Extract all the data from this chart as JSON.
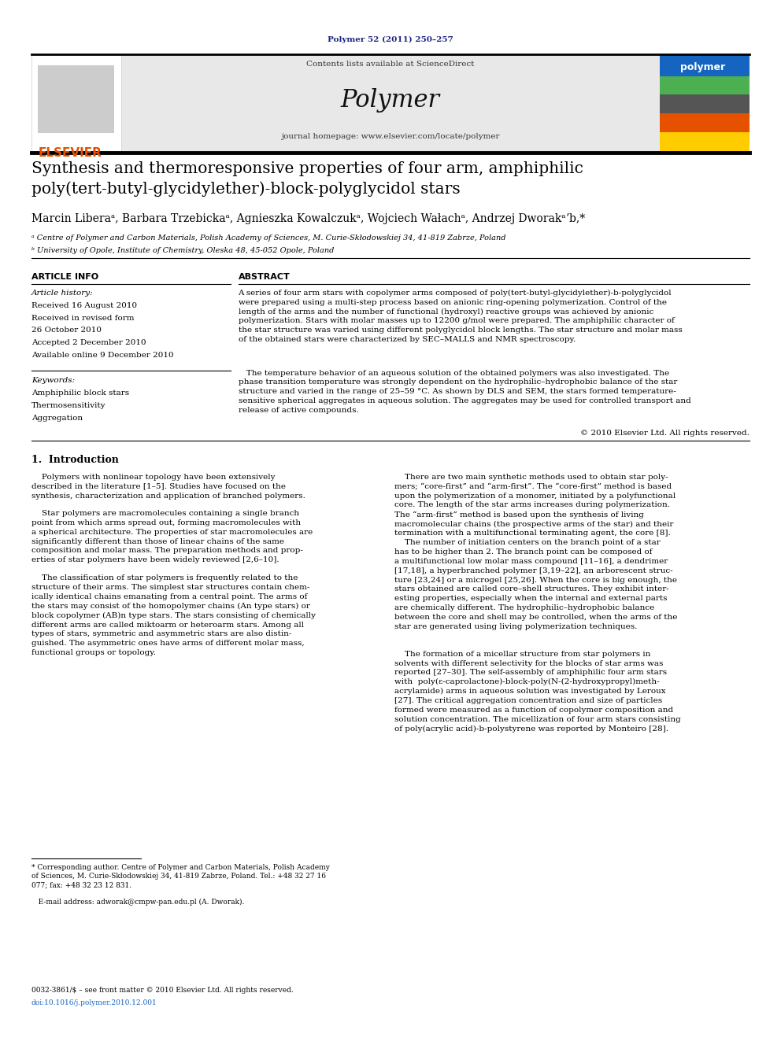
{
  "page_width": 9.92,
  "page_height": 13.23,
  "bg_color": "#ffffff",
  "header_citation": "Polymer 52 (2011) 250–257",
  "header_citation_color": "#1a237e",
  "elsevier_logo_color": "#e65100",
  "elsevier_text": "ELSEVIER",
  "journal_header_bg": "#e8e8e8",
  "journal_name": "Polymer",
  "contents_text": "Contents lists available at ScienceDirect",
  "sciencedirect_color": "#1565c0",
  "journal_homepage": "journal homepage: www.elsevier.com/locate/polymer",
  "top_rule_color": "#000000",
  "bottom_rule_color": "#000000",
  "article_title": "Synthesis and thermoresponsive properties of four arm, amphiphilic\npoly(tert-butyl-glycidylether)-block-polyglycidol stars",
  "affiliation_a": "ᵃ Centre of Polymer and Carbon Materials, Polish Academy of Sciences, M. Curie-Skłodowskiej 34, 41-819 Zabrze, Poland",
  "affiliation_b": "ᵇ University of Opole, Institute of Chemistry, Oleska 48, 45-052 Opole, Poland",
  "article_info_title": "ARTICLE INFO",
  "article_history_title": "Article history:",
  "received1": "Received 16 August 2010",
  "received2": "Received in revised form",
  "received2b": "26 October 2010",
  "accepted": "Accepted 2 December 2010",
  "available": "Available online 9 December 2010",
  "keywords_title": "Keywords:",
  "keyword1": "Amphiphilic block stars",
  "keyword2": "Thermosensitivity",
  "keyword3": "Aggregation",
  "abstract_title": "ABSTRACT",
  "abstract_p1": "A series of four arm stars with copolymer arms composed of poly(tert-butyl-glycidylether)-b-polyglycidol\nwere prepared using a multi-step process based on anionic ring-opening polymerization. Control of the\nlength of the arms and the number of functional (hydroxyl) reactive groups was achieved by anionic\npolymerization. Stars with molar masses up to 12200 g/mol were prepared. The amphiphilic character of\nthe star structure was varied using different polyglycidol block lengths. The star structure and molar mass\nof the obtained stars were characterized by SEC–MALLS and NMR spectroscopy.",
  "abstract_p2": "   The temperature behavior of an aqueous solution of the obtained polymers was also investigated. The\nphase transition temperature was strongly dependent on the hydrophilic–hydrophobic balance of the star\nstructure and varied in the range of 25–59 °C. As shown by DLS and SEM, the stars formed temperature-\nsensitive spherical aggregates in aqueous solution. The aggregates may be used for controlled transport and\nrelease of active compounds.",
  "copyright": "© 2010 Elsevier Ltd. All rights reserved.",
  "section1_title": "1.  Introduction",
  "intro_left_p1": "    Polymers with nonlinear topology have been extensively\ndescribed in the literature [1–5]. Studies have focused on the\nsynthesis, characterization and application of branched polymers.",
  "intro_left_p2": "    Star polymers are macromolecules containing a single branch\npoint from which arms spread out, forming macromolecules with\na spherical architecture. The properties of star macromolecules are\nsignificantly different than those of linear chains of the same\ncomposition and molar mass. The preparation methods and prop-\nerties of star polymers have been widely reviewed [2,6–10].",
  "intro_left_p3": "    The classification of star polymers is frequently related to the\nstructure of their arms. The simplest star structures contain chem-\nically identical chains emanating from a central point. The arms of\nthe stars may consist of the homopolymer chains (An type stars) or\nblock copolymer (AB)n type stars. The stars consisting of chemically\ndifferent arms are called miktoarm or heteroarm stars. Among all\ntypes of stars, symmetric and asymmetric stars are also distin-\nguished. The asymmetric ones have arms of different molar mass,\nfunctional groups or topology.",
  "intro_right_p1": "    There are two main synthetic methods used to obtain star poly-\nmers; “core-first” and “arm-first”. The “core-first” method is based\nupon the polymerization of a monomer, initiated by a polyfunctional\ncore. The length of the star arms increases during polymerization.\nThe “arm-first” method is based upon the synthesis of living\nmacromolecular chains (the prospective arms of the star) and their\ntermination with a multifunctional terminating agent, the core [8].",
  "intro_right_p2": "    The number of initiation centers on the branch point of a star\nhas to be higher than 2. The branch point can be composed of\na multifunctional low molar mass compound [11–16], a dendrimer\n[17,18], a hyperbranched polymer [3,19–22], an arborescent struc-\nture [23,24] or a microgel [25,26]. When the core is big enough, the\nstars obtained are called core–shell structures. They exhibit inter-\nesting properties, especially when the internal and external parts\nare chemically different. The hydrophilic–hydrophobic balance\nbetween the core and shell may be controlled, when the arms of the\nstar are generated using living polymerization techniques.",
  "intro_right_p3": "    The formation of a micellar structure from star polymers in\nsolvents with different selectivity for the blocks of star arms was\nreported [27–30]. The self-assembly of amphiphilic four arm stars\nwith  poly(ε-caprolactone)-block-poly(N-(2-hydroxypropyl)meth-\nacrylamide) arms in aqueous solution was investigated by Leroux\n[27]. The critical aggregation concentration and size of particles\nformed were measured as a function of copolymer composition and\nsolution concentration. The micellization of four arm stars consisting\nof poly(acrylic acid)-b-polystyrene was reported by Monteiro [28].",
  "footnote_star": "* Corresponding author. Centre of Polymer and Carbon Materials, Polish Academy\nof Sciences, M. Curie-Skłodowskiej 34, 41-819 Zabrze, Poland. Tel.: +48 32 27 16\n077; fax: +48 32 23 12 831.",
  "footnote_email": "   E-mail address: adworak@cmpw-pan.edu.pl (A. Dworak).",
  "footer_line1": "0032-3861/$ – see front matter © 2010 Elsevier Ltd. All rights reserved.",
  "footer_line2": "doi:10.1016/j.polymer.2010.12.001",
  "link_color": "#1565c0",
  "text_color": "#000000"
}
